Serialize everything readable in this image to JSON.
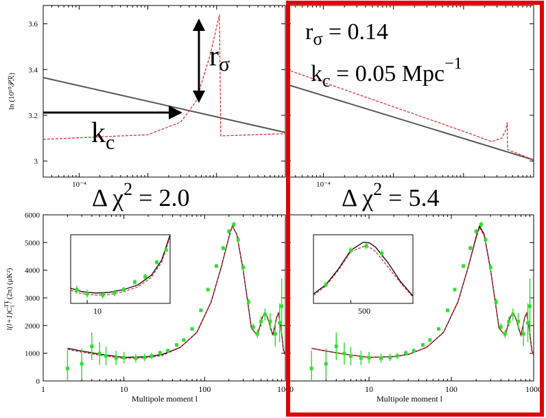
{
  "colors": {
    "background": "#ffffff",
    "model_line": "#555555",
    "model_line_dark": "#111111",
    "feature_model": "#e02020",
    "data_points": "#33dd33",
    "highlight_box": "#e00000"
  },
  "text": {
    "ylabel_top": "ln (10¹⁰𝒫ℛ)",
    "arrow_label_r": "r",
    "arrow_label_r_sub": "σ",
    "arrow_label_k": "k",
    "arrow_label_k_sub": "c",
    "params_r": "r",
    "params_r_sub": "σ",
    "params_r_val": " = 0.14",
    "params_k": "k",
    "params_k_sub": "c",
    "params_k_val": " = 0.05 Mpc",
    "params_k_exp": "−1",
    "delta_chi_left_prefix": "Δ χ",
    "delta_chi_left_exp": "2",
    "delta_chi_left_val": " = 2.0",
    "delta_chi_right_prefix": "Δ χ",
    "delta_chi_right_exp": "2",
    "delta_chi_right_val": " = 5.4",
    "ylabel_bottom": "l(l+1)C",
    "ylabel_bottom_sup": "TT",
    "ylabel_bottom_sub": "l",
    "ylabel_bottom_rest": " / (2π) (μK²)",
    "xlabel_bottom": "Multipole moment l"
  },
  "chart_data": [
    {
      "id": "primordial-left",
      "type": "line",
      "ylabel": "ln (10¹⁰𝒫ℛ)",
      "xscale": "log",
      "xlim": [
        3e-05,
        0.1
      ],
      "ylim": [
        2.93,
        3.68
      ],
      "yticks": [
        3.0,
        3.2,
        3.4,
        3.6
      ],
      "xtick_label": "10⁻⁴",
      "series": [
        {
          "style": "solid",
          "x": [
            3e-05,
            0.1
          ],
          "y": [
            3.365,
            3.125
          ]
        },
        {
          "style": "dashed",
          "x": [
            3e-05,
            0.001,
            0.003,
            0.005,
            0.008,
            0.011,
            0.0115,
            0.1
          ],
          "y": [
            3.095,
            3.115,
            3.17,
            3.26,
            3.46,
            3.64,
            3.11,
            3.12
          ]
        }
      ],
      "annotations": [
        "r_σ",
        "k_c"
      ]
    },
    {
      "id": "primordial-right",
      "type": "line",
      "xscale": "log",
      "xlim": [
        3e-05,
        0.1
      ],
      "ylim": [
        2.93,
        3.68
      ],
      "yticks": [
        3.0,
        3.2,
        3.4,
        3.6
      ],
      "xtick_label": "10⁻⁴",
      "series": [
        {
          "style": "solid",
          "x": [
            3e-05,
            0.1
          ],
          "y": [
            3.335,
            3.005
          ]
        },
        {
          "style": "dashed",
          "x": [
            3e-05,
            0.01,
            0.025,
            0.035,
            0.04,
            0.042,
            0.0425,
            0.1
          ],
          "y": [
            3.4,
            3.13,
            3.085,
            3.1,
            3.135,
            3.17,
            3.05,
            3.005
          ]
        }
      ],
      "annotations": [
        "r_σ = 0.14",
        "k_c = 0.05 Mpc⁻¹"
      ]
    },
    {
      "id": "cmb-left",
      "type": "line",
      "xlabel": "Multipole moment l",
      "ylabel": "l(l+1)C_l^TT / (2π) (μK²)",
      "xscale": "log",
      "xlim": [
        1,
        1000
      ],
      "ylim": [
        0,
        6000
      ],
      "yticks": [
        0,
        1000,
        2000,
        3000,
        4000,
        5000,
        6000
      ],
      "xticks": [
        1,
        10,
        100,
        1000
      ],
      "xtick_labels": [
        "1",
        "10",
        "100",
        "1000"
      ],
      "model": {
        "l": [
          2,
          3,
          5,
          10,
          20,
          30,
          50,
          80,
          120,
          160,
          200,
          220,
          250,
          300,
          380,
          450,
          520,
          560,
          600,
          700,
          780,
          820,
          880,
          950,
          1000
        ],
        "dl": [
          1180,
          1080,
          970,
          850,
          880,
          960,
          1210,
          1750,
          2850,
          4100,
          5200,
          5600,
          5300,
          4000,
          1900,
          1650,
          2300,
          2480,
          2300,
          1650,
          2300,
          2450,
          1950,
          1100,
          950
        ]
      },
      "data": {
        "l": [
          2,
          3,
          4,
          5,
          6,
          8,
          10,
          14,
          18,
          22,
          28,
          35,
          45,
          55,
          70,
          90,
          110,
          140,
          170,
          200,
          230,
          260,
          300,
          350,
          400,
          450,
          500,
          560,
          650,
          750,
          850,
          900
        ],
        "dl": [
          450,
          620,
          1250,
          990,
          900,
          830,
          840,
          820,
          850,
          900,
          1010,
          1090,
          1300,
          1480,
          1880,
          2550,
          3300,
          4150,
          4800,
          5400,
          5650,
          5100,
          4100,
          2850,
          1950,
          1700,
          2150,
          2400,
          2150,
          1700,
          2100,
          2700
        ],
        "err": [
          650,
          550,
          500,
          400,
          330,
          260,
          210,
          160,
          130,
          110,
          90,
          80,
          70,
          60,
          55,
          55,
          60,
          70,
          80,
          90,
          100,
          110,
          120,
          120,
          130,
          150,
          180,
          220,
          300,
          450,
          700,
          1000
        ]
      },
      "inset": {
        "xtick_label": "10"
      }
    },
    {
      "id": "cmb-right",
      "type": "line",
      "xlabel": "Multipole moment l",
      "xscale": "log",
      "xlim": [
        1,
        1000
      ],
      "ylim": [
        0,
        6000
      ],
      "yticks": [
        0,
        1000,
        2000,
        3000,
        4000,
        5000,
        6000
      ],
      "xticks": [
        10,
        100,
        1000
      ],
      "xtick_labels": [
        "10",
        "100",
        "1000"
      ],
      "inset": {
        "xtick_label": "500"
      }
    }
  ]
}
